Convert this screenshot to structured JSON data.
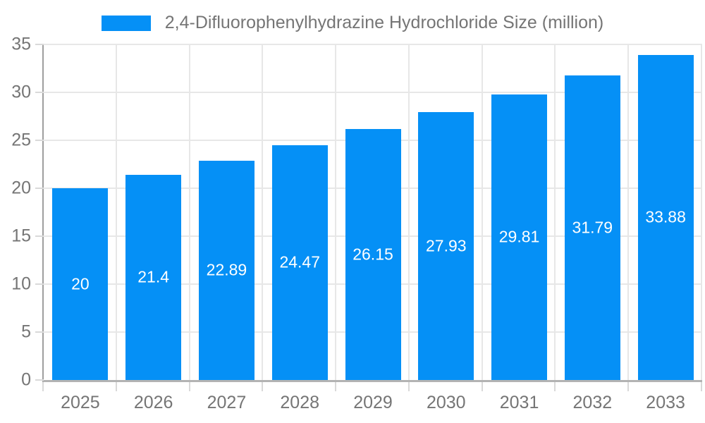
{
  "legend": {
    "position": "top",
    "label": "2,4-Difluorophenylhydrazine Hydrochloride Size (million)"
  },
  "chart_data": {
    "type": "bar",
    "title": "2,4-Difluorophenylhydrazine Hydrochloride Size (million)",
    "categories": [
      "2025",
      "2026",
      "2027",
      "2028",
      "2029",
      "2030",
      "2031",
      "2032",
      "2033"
    ],
    "values": [
      20,
      21.4,
      22.89,
      24.47,
      26.15,
      27.93,
      29.81,
      31.79,
      33.88
    ],
    "value_labels": [
      "20",
      "21.4",
      "22.89",
      "24.47",
      "26.15",
      "27.93",
      "29.81",
      "31.79",
      "33.88"
    ],
    "xlabel": "",
    "ylabel": "",
    "ylim": [
      0,
      35
    ],
    "yticks": [
      0,
      5,
      10,
      15,
      20,
      25,
      30,
      35
    ],
    "grid": true,
    "legend_position": "top",
    "value_labels_position": "center-of-bar",
    "colors": {
      "bar": "#0590f6",
      "value_label": "#ffffff",
      "axis_text": "#757575",
      "gridline": "#e7e7e7",
      "tick": "#d9d9d9",
      "y_axis_line": "#9e9e9e",
      "x_axis_line": "#b3b3b3",
      "background": "#ffffff"
    }
  }
}
